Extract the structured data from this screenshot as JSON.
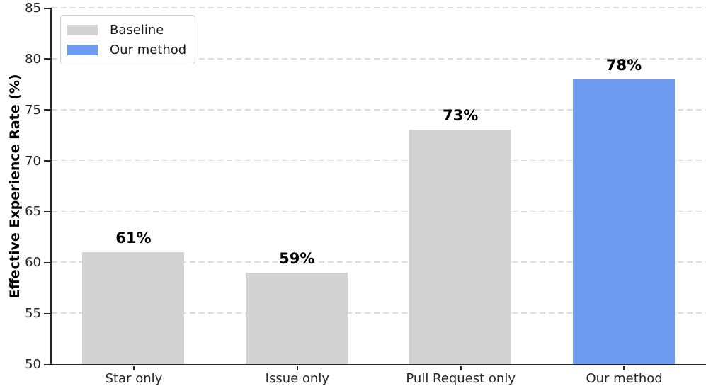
{
  "chart_data": {
    "type": "bar",
    "title": "",
    "xlabel": "",
    "ylabel": "Effective Experience Rate (%)",
    "categories": [
      "Star only",
      "Issue only",
      "Pull Request only",
      "Our method"
    ],
    "values": [
      61,
      59,
      73,
      78
    ],
    "bar_labels": [
      "61%",
      "59%",
      "73%",
      "78%"
    ],
    "bar_colors": [
      "#d3d3d3",
      "#d3d3d3",
      "#d3d3d3",
      "#6c9bf0"
    ],
    "ylim": [
      50,
      85
    ],
    "yticks": [
      50,
      55,
      60,
      65,
      70,
      75,
      80,
      85
    ],
    "ytick_labels": [
      "50",
      "55",
      "60",
      "65",
      "70",
      "75",
      "80",
      "85"
    ],
    "grid": "horizontal dashed gridlines, no vertical grid",
    "legend_position": "upper left",
    "legend": [
      {
        "label": "Baseline",
        "color": "#d3d3d3"
      },
      {
        "label": "Our method",
        "color": "#6c9bf0"
      }
    ],
    "colors": {
      "baseline_bar": "#d3d3d3",
      "highlight_bar": "#6c9bf0",
      "spine": "#262626",
      "gridline": "#dcdcdc",
      "tick_text": "#262626",
      "value_text": "#000000",
      "background": "#ffffff"
    }
  }
}
